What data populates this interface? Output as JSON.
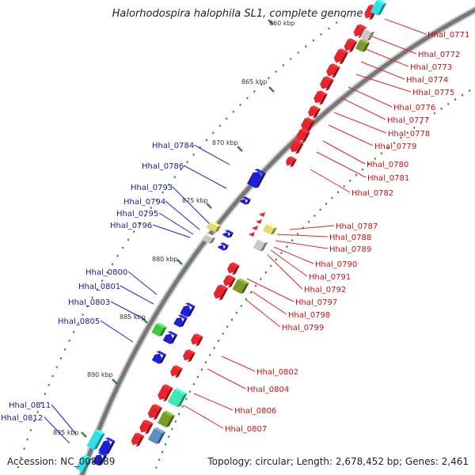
{
  "title": "Halorhodospira halophila SL1, complete genome",
  "accession": "Accession: NC_008789",
  "summary": "Topology: circular; Length: 2,678,452 bp; Genes: 2,461",
  "colors": {
    "forward": "#e8232b",
    "reverse": "#1f1fd6",
    "forward_label": "#cc1111",
    "reverse_label": "#1a1aa6",
    "tick": "#2e8b2e",
    "backbone": "#777777",
    "rna_yellow": "#e8d870",
    "olive": "#7a9a2a",
    "green": "#3ec83e",
    "aqua": "#3ee8b0",
    "cyan": "#30e0e8",
    "steel": "#5b8fc0",
    "gray": "#c8c8c8"
  },
  "scale_labels": [
    "860 kbp",
    "865 kbp",
    "870 kbp",
    "875 kbp",
    "880 kbp",
    "885 kbp",
    "890 kbp",
    "895 kbp"
  ],
  "forward_genes": [
    "Hhal_0771",
    "Hhal_0772",
    "Hhal_0773",
    "Hhal_0774",
    "Hhal_0775",
    "Hhal_0776",
    "Hhal_0777",
    "Hhal_0778",
    "Hhal_0779",
    "Hhal_0780",
    "Hhal_0781",
    "Hhal_0782",
    "Hhal_0787",
    "Hhal_0788",
    "Hhal_0789",
    "Hhal_0790",
    "Hhal_0791",
    "Hhal_0792",
    "Hhal_0797",
    "Hhal_0798",
    "Hhal_0799",
    "Hhal_0802",
    "Hhal_0804",
    "Hhal_0806",
    "Hhal_0807"
  ],
  "reverse_genes": [
    "Hhal_0784",
    "Hhal_0786",
    "Hhal_0793",
    "Hhal_0794",
    "Hhal_0795",
    "Hhal_0796",
    "Hhal_0800",
    "Hhal_0801",
    "Hhal_0803",
    "Hhal_0805",
    "Hhal_0811",
    "Hhal_0812"
  ]
}
